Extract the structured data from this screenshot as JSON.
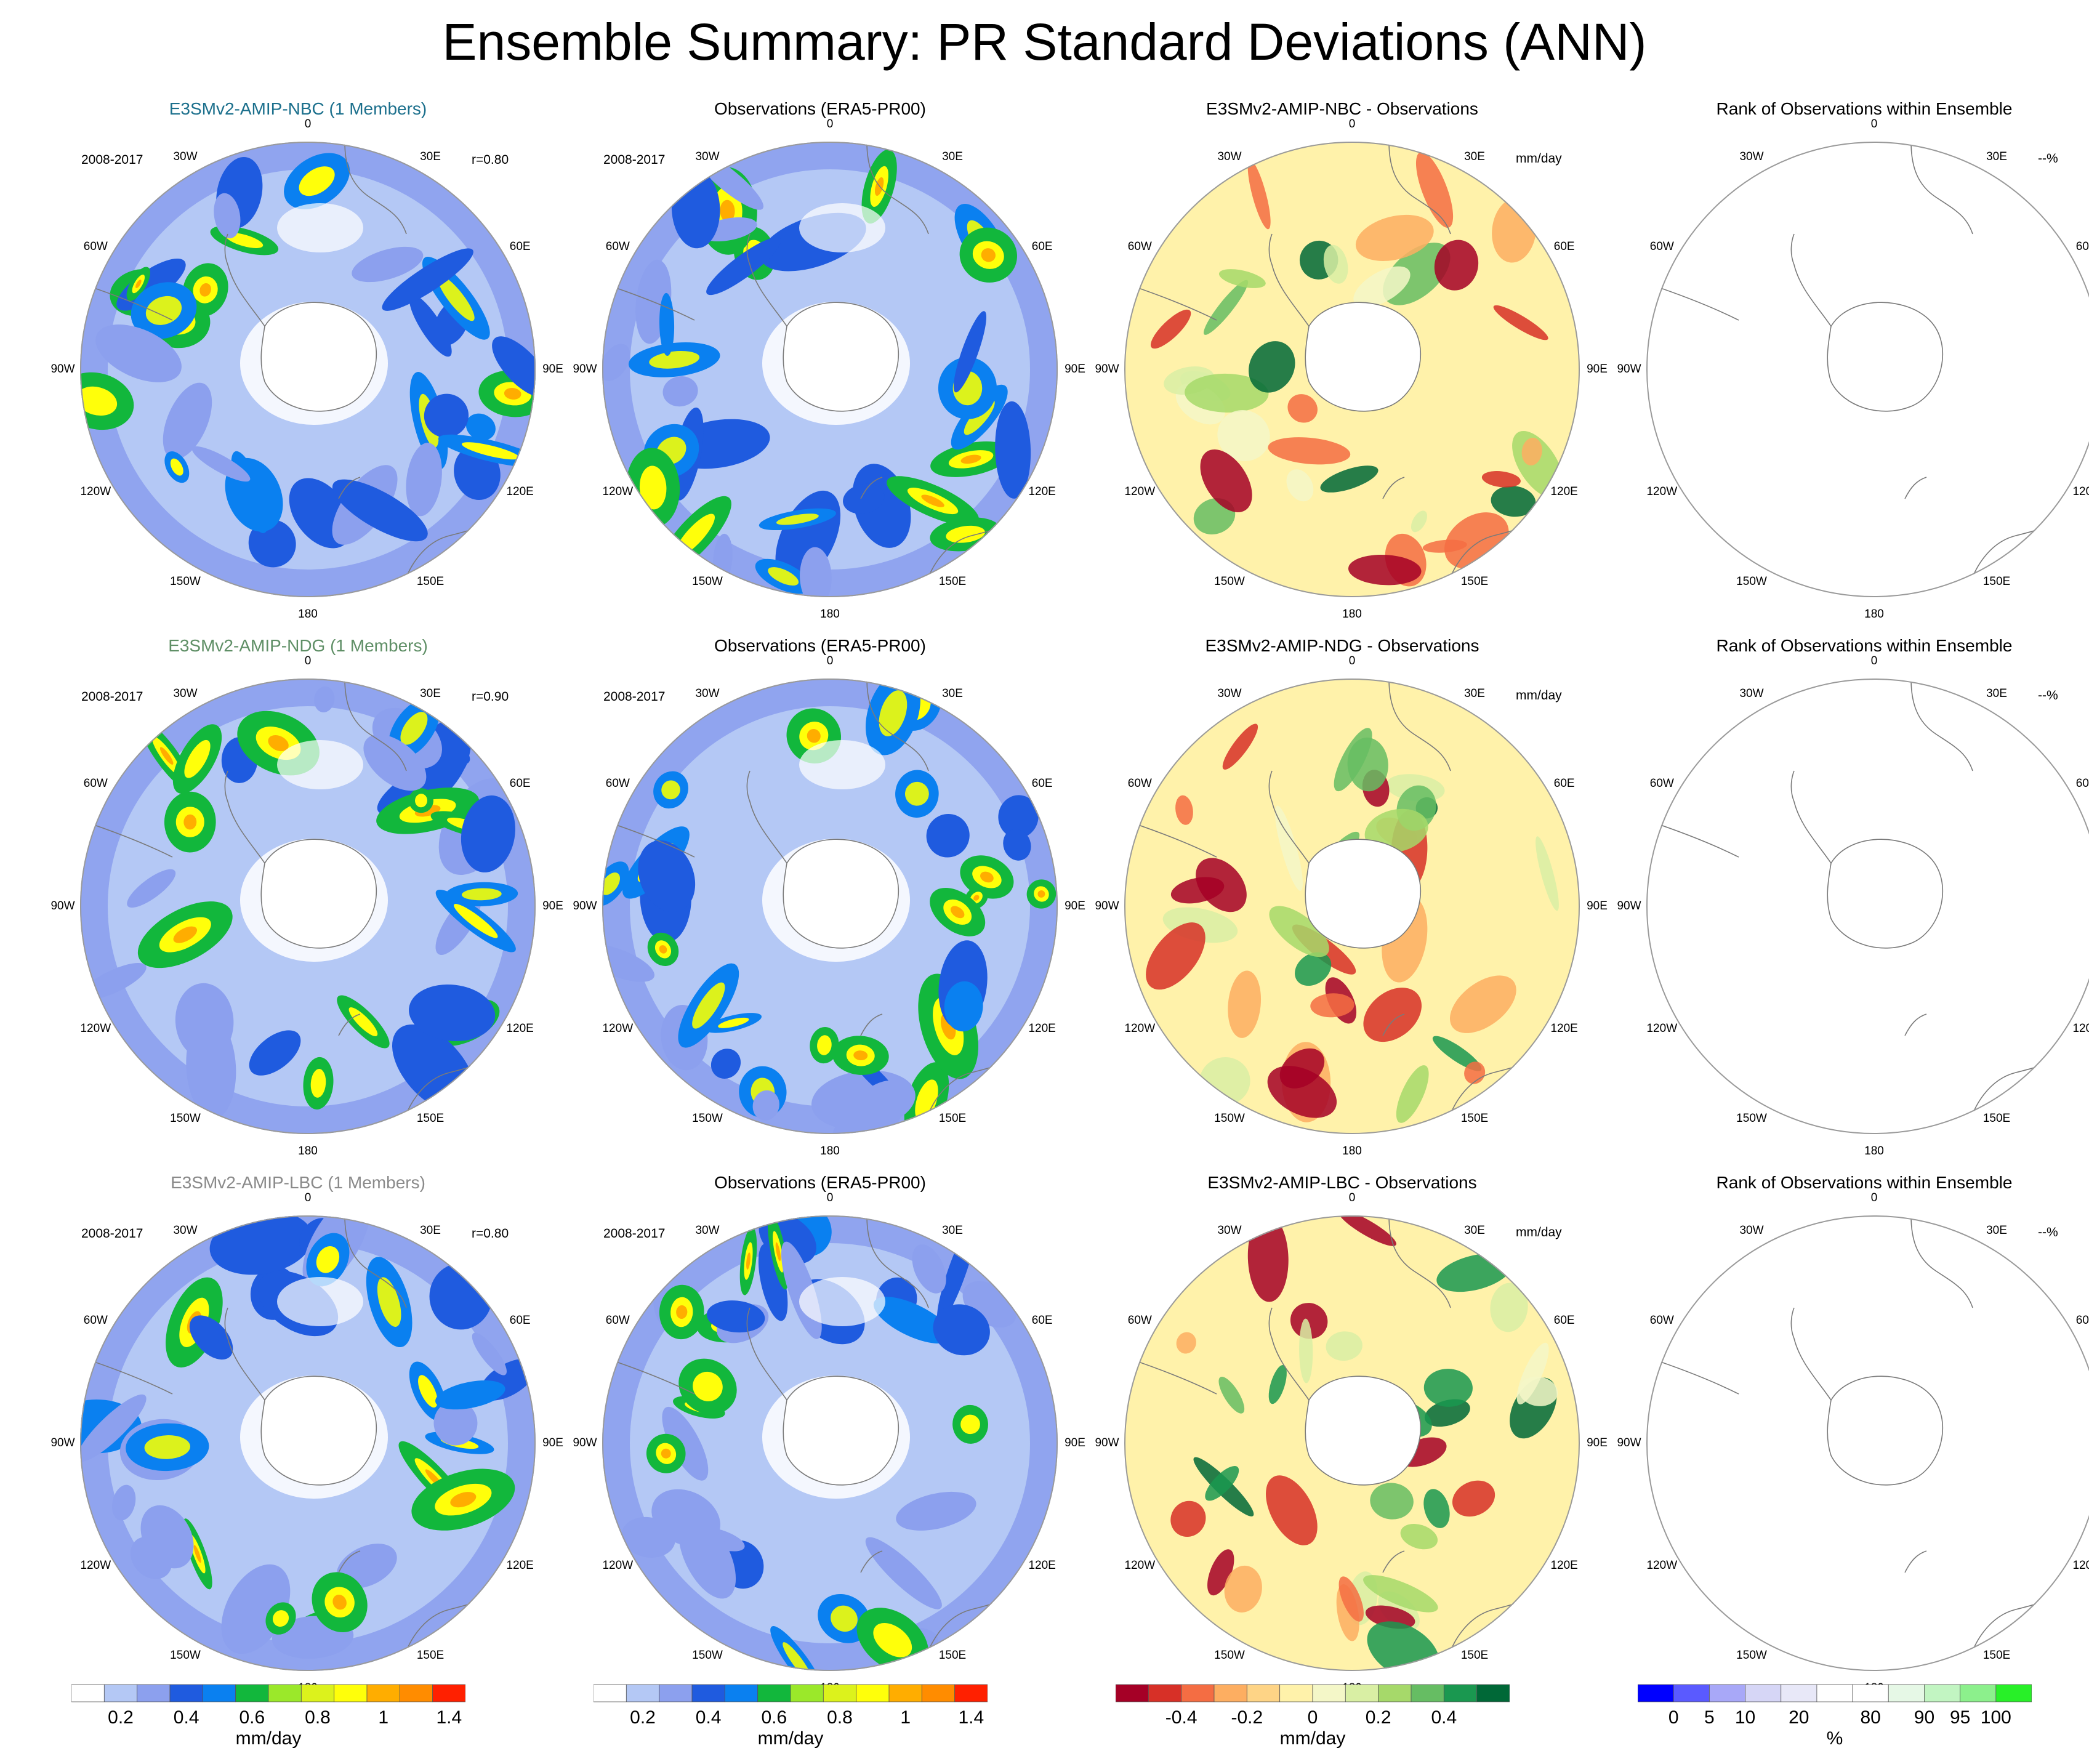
{
  "title": "Ensemble Summary: PR Standard Deviations (ANN)",
  "lon_labels": [
    "0",
    "30E",
    "60E",
    "90E",
    "120E",
    "150E",
    "180",
    "150W",
    "120W",
    "90W",
    "60W",
    "30W"
  ],
  "rows": [
    {
      "period": "2008-2017",
      "correlation": "r=0.80",
      "model_title": "E3SMv2-AMIP-NBC (1 Members)",
      "obs_title": "Observations (ERA5-PR00)",
      "diff_title": "E3SMv2-AMIP-NBC - Observations",
      "diff_unit": "mm/day",
      "rank_title": "Rank of Observations within Ensemble",
      "rank_unit": "--%",
      "title_color": "#1b6f8c"
    },
    {
      "period": "2008-2017",
      "correlation": "r=0.90",
      "model_title": "E3SMv2-AMIP-NDG (1 Members)",
      "obs_title": "Observations (ERA5-PR00)",
      "diff_title": "E3SMv2-AMIP-NDG - Observations",
      "diff_unit": "mm/day",
      "rank_title": "Rank of Observations within Ensemble",
      "rank_unit": "--%",
      "title_color": "#5f8f66"
    },
    {
      "period": "2008-2017",
      "correlation": "r=0.80",
      "model_title": "E3SMv2-AMIP-LBC (1 Members)",
      "obs_title": "Observations (ERA5-PR00)",
      "diff_title": "E3SMv2-AMIP-LBC - Observations",
      "diff_unit": "mm/day",
      "rank_title": "Rank of Observations within Ensemble",
      "rank_unit": "--%",
      "title_color": "#8a8a8a"
    }
  ],
  "colorbars": [
    {
      "unit": "mm/day",
      "colors": [
        "#ffffff",
        "#b4c8f5",
        "#8ca0ee",
        "#1f5bdf",
        "#0a80f0",
        "#12b73c",
        "#9be82a",
        "#dcf21c",
        "#ffff0a",
        "#ffad00",
        "#ff8c00",
        "#ff2000"
      ],
      "tick_labels": [
        "0.2",
        "0.4",
        "0.6",
        "0.8",
        "1",
        "1.4"
      ],
      "tick_positions": [
        1.5,
        3.5,
        5.5,
        7.5,
        9.5,
        11.5
      ]
    },
    {
      "unit": "mm/day",
      "colors": [
        "#ffffff",
        "#b4c8f5",
        "#8ca0ee",
        "#1f5bdf",
        "#0a80f0",
        "#12b73c",
        "#9be82a",
        "#dcf21c",
        "#ffff0a",
        "#ffad00",
        "#ff8c00",
        "#ff2000"
      ],
      "tick_labels": [
        "0.2",
        "0.4",
        "0.6",
        "0.8",
        "1",
        "1.4"
      ],
      "tick_positions": [
        1.5,
        3.5,
        5.5,
        7.5,
        9.5,
        11.5
      ]
    },
    {
      "unit": "mm/day",
      "colors": [
        "#a50026",
        "#d73027",
        "#f46d43",
        "#fdae61",
        "#fed486",
        "#fff2aa",
        "#f4f7c8",
        "#d9efa4",
        "#a6d96a",
        "#66bd63",
        "#1a9850",
        "#006837"
      ],
      "tick_labels": [
        "-0.4",
        "-0.2",
        "0",
        "0.2",
        "0.4"
      ],
      "tick_positions": [
        2,
        4,
        6,
        8,
        10
      ]
    },
    {
      "unit": "%",
      "colors": [
        "#0000ff",
        "#5a5aff",
        "#a8a8f8",
        "#d6d6f6",
        "#e8e8f8",
        "#ffffff",
        "#ffffff",
        "#e6f8e6",
        "#c2f5c2",
        "#8cf08c",
        "#28f028"
      ],
      "tick_labels": [
        "0",
        "5",
        "10",
        "20",
        "80",
        "90",
        "95",
        "100"
      ],
      "tick_positions": [
        1,
        2,
        3,
        4.5,
        6.5,
        8,
        9,
        10
      ]
    }
  ]
}
